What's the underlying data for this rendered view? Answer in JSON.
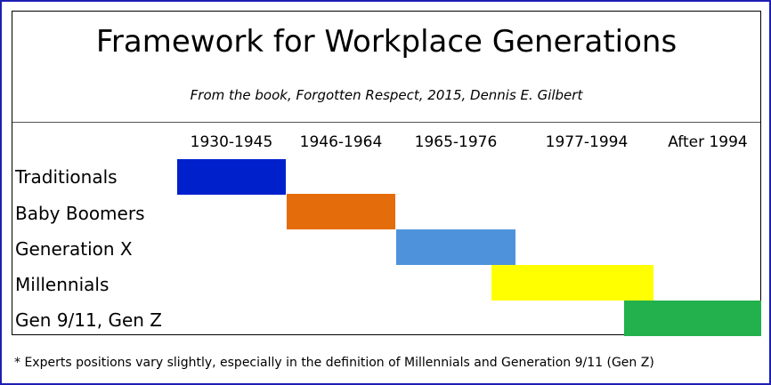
{
  "title": "Framework for Workplace Generations",
  "subtitle": "From the book, Forgotten Respect, 2015, Dennis E. Gilbert",
  "periods": [
    "1930-1945",
    "1946-1964",
    "1965-1976",
    "1977-1994",
    "After 1994"
  ],
  "generations": [
    {
      "label": "Traditionals",
      "color": "#0020cc"
    },
    {
      "label": "Baby Boomers",
      "color": "#e46c0a"
    },
    {
      "label": "Generation X",
      "color": "#4f92dc"
    },
    {
      "label": "Millennials",
      "color": "#ffff00"
    },
    {
      "label": "Gen 9/11, Gen Z",
      "color": "#22b14c"
    }
  ],
  "footnote": "* Experts positions vary slightly,  especially in the definition of Millennials  and Generation 9/11 (Gen Z)"
}
